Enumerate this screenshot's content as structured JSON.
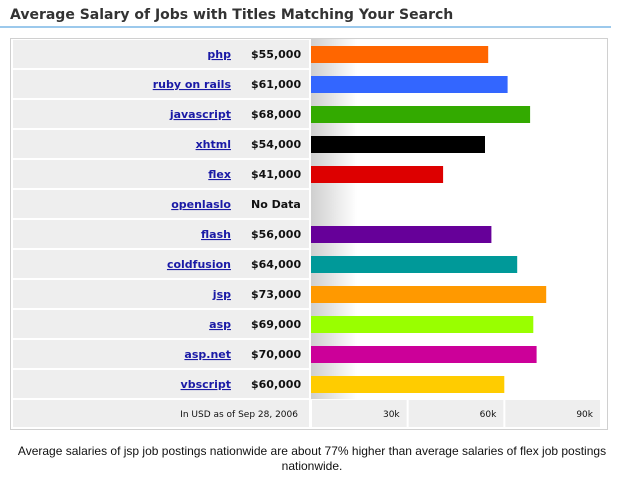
{
  "header": {
    "title": "Average Salary of Jobs with Titles Matching Your Search"
  },
  "chart_data": {
    "type": "bar",
    "orientation": "horizontal",
    "categories": [
      "php",
      "ruby on rails",
      "javascript",
      "xhtml",
      "flex",
      "openlaslo",
      "flash",
      "coldfusion",
      "jsp",
      "asp",
      "asp.net",
      "vbscript"
    ],
    "values": [
      55000,
      61000,
      68000,
      54000,
      41000,
      null,
      56000,
      64000,
      73000,
      69000,
      70000,
      60000
    ],
    "value_labels": [
      "$55,000",
      "$61,000",
      "$68,000",
      "$54,000",
      "$41,000",
      "No Data",
      "$56,000",
      "$64,000",
      "$73,000",
      "$69,000",
      "$70,000",
      "$60,000"
    ],
    "colors": [
      "#ff6600",
      "#3366ff",
      "#33aa00",
      "#000000",
      "#dd0000",
      "#cccccc",
      "#660099",
      "#009999",
      "#ff9900",
      "#99ff00",
      "#cc0099",
      "#ffcc00"
    ],
    "xlim": [
      0,
      90000
    ],
    "tick_labels": [
      "30k",
      "60k",
      "90k"
    ],
    "grid": false,
    "footnote": "In USD as of Sep 28, 2006"
  },
  "caption": "Average salaries of jsp job postings nationwide are about 77% higher than average salaries of flex job postings nationwide."
}
